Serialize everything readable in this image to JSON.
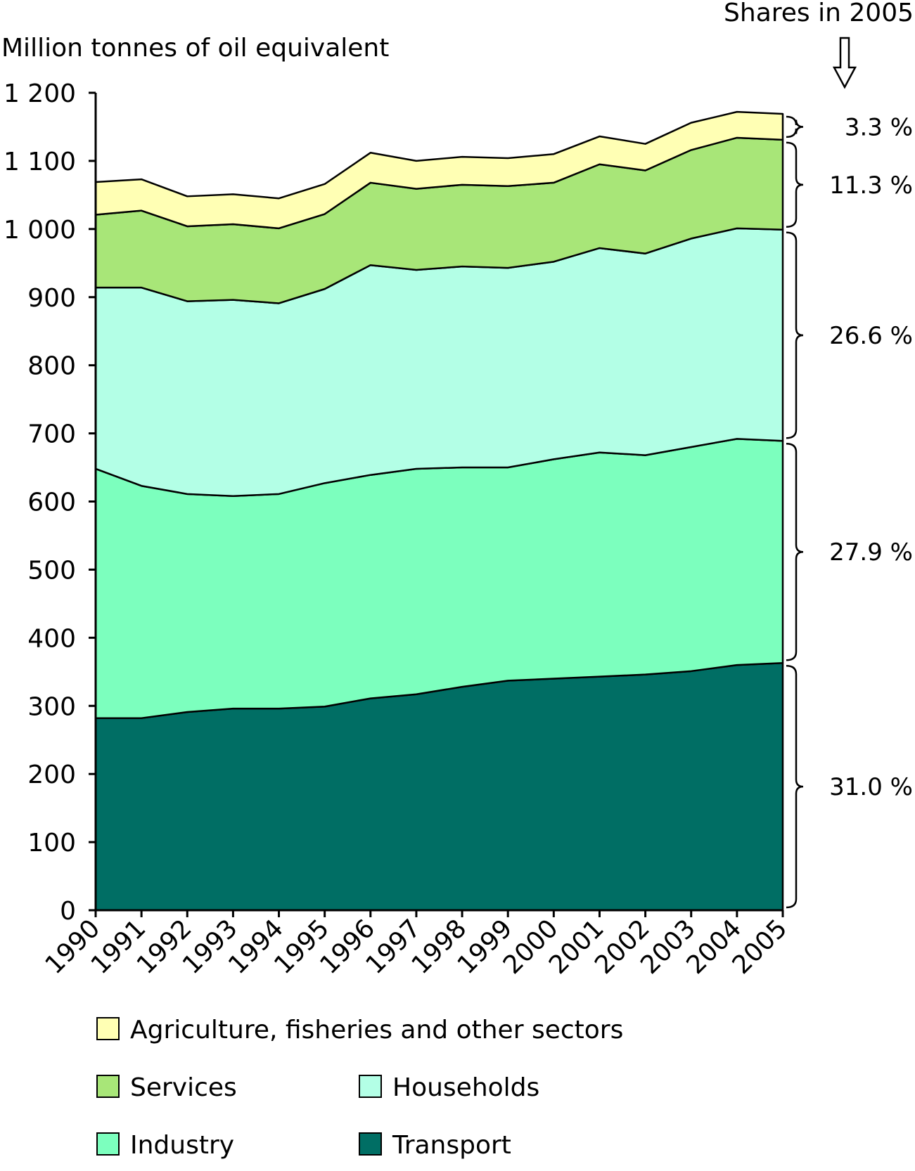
{
  "chart_data": {
    "type": "area",
    "stacked": true,
    "ylabel": "Million tonnes of oil equivalent",
    "shares_title": "Shares in 2005",
    "ylim": [
      0,
      1200
    ],
    "yticks": [
      0,
      100,
      200,
      300,
      400,
      500,
      600,
      700,
      800,
      900,
      1000,
      1100,
      1200
    ],
    "ytick_labels": [
      "0",
      "100",
      "200",
      "300",
      "400",
      "500",
      "600",
      "700",
      "800",
      "900",
      "1 000",
      "1 100",
      "1 200"
    ],
    "x": [
      "1990",
      "1991",
      "1992",
      "1993",
      "1994",
      "1995",
      "1996",
      "1997",
      "1998",
      "1999",
      "2000",
      "2001",
      "2002",
      "2003",
      "2004",
      "2005"
    ],
    "series": [
      {
        "name": "Transport",
        "color": "#006e64",
        "values": [
          282,
          282,
          291,
          296,
          296,
          299,
          311,
          317,
          328,
          337,
          340,
          343,
          346,
          351,
          360,
          363
        ]
      },
      {
        "name": "Industry",
        "color": "#7cffbe",
        "values": [
          366,
          341,
          320,
          312,
          315,
          328,
          328,
          331,
          322,
          313,
          322,
          329,
          322,
          329,
          332,
          326
        ]
      },
      {
        "name": "Households",
        "color": "#b3ffe6",
        "values": [
          266,
          291,
          283,
          288,
          280,
          285,
          308,
          292,
          295,
          293,
          290,
          300,
          296,
          306,
          309,
          310
        ]
      },
      {
        "name": "Services",
        "color": "#a8e678",
        "values": [
          107,
          113,
          110,
          111,
          110,
          110,
          121,
          119,
          120,
          120,
          116,
          123,
          122,
          130,
          133,
          132
        ]
      },
      {
        "name": "Agriculture, fisheries and other sectors",
        "color": "#ffffb4",
        "values": [
          48,
          46,
          44,
          44,
          44,
          44,
          44,
          41,
          41,
          41,
          42,
          41,
          39,
          40,
          38,
          38
        ]
      }
    ],
    "shares_2005": [
      "3.3 %",
      "11.3 %",
      "26.6 %",
      "27.9 %",
      "31.0 %"
    ],
    "legend": {
      "rows": [
        [
          "Agriculture, fisheries and other sectors"
        ],
        [
          "Services",
          "Households"
        ],
        [
          "Industry",
          "Transport"
        ]
      ]
    }
  }
}
